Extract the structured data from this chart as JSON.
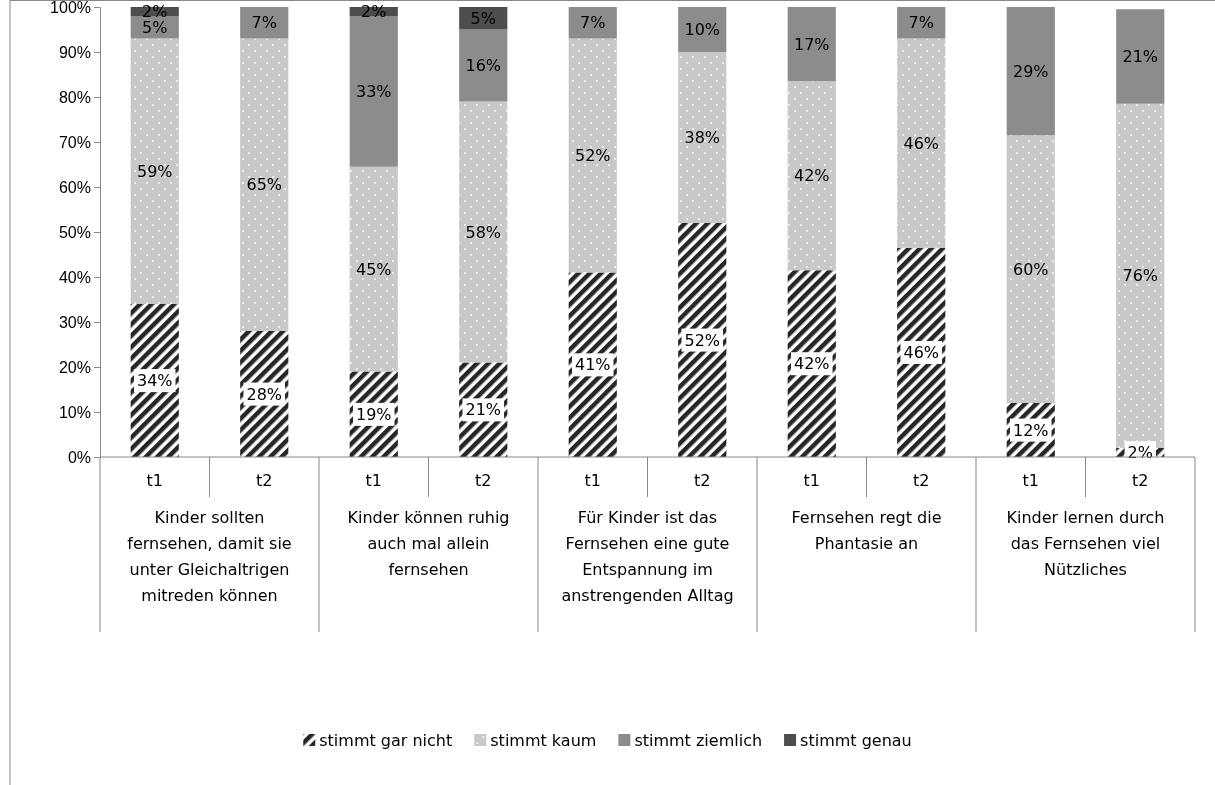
{
  "chart_data": {
    "type": "bar",
    "stacked": true,
    "categories": [
      "t1",
      "t2",
      "t1",
      "t2",
      "t1",
      "t2",
      "t1",
      "t2",
      "t1",
      "t2"
    ],
    "annotations": [
      "Kinder sollten fernsehen, damit sie unter Gleichaltrigen mitreden können",
      "Kinder können ruhig auch mal allein fernsehen",
      "Für Kinder ist das Fernsehen eine gute Entspannung im anstrengenden Alltag",
      "Fernsehen regt die Phantasie an",
      "Kinder lernen durch das Fernsehen viel Nützliches"
    ],
    "series": [
      {
        "name": "stimmt gar nicht",
        "color": "#262626",
        "values": [
          34,
          28,
          19,
          21,
          41,
          52,
          41.5,
          46.5,
          12,
          2
        ],
        "value_labels": [
          "34%",
          "28%",
          "19%",
          "21%",
          "41%",
          "52%",
          "42%",
          "46%",
          "12%",
          "2%"
        ]
      },
      {
        "name": "stimmt kaum",
        "color": "#c8c8c8",
        "values": [
          59,
          65,
          45.5,
          58,
          52,
          38,
          42,
          46.5,
          59.5,
          76.5
        ],
        "value_labels": [
          "59%",
          "65%",
          "45%",
          "58%",
          "52%",
          "38%",
          "42%",
          "46%",
          "60%",
          "76%"
        ]
      },
      {
        "name": "stimmt ziemlich",
        "color": "#8c8c8c",
        "values": [
          5,
          7,
          33.5,
          16,
          7,
          10,
          16.5,
          7,
          28.5,
          21
        ],
        "value_labels": [
          "5%",
          "7%",
          "33%",
          "16%",
          "7%",
          "10%",
          "17%",
          "7%",
          "29%",
          "21%"
        ]
      },
      {
        "name": "stimmt genau",
        "color": "#4d4d4d",
        "values": [
          2,
          null,
          2,
          5,
          null,
          null,
          null,
          null,
          null,
          null
        ],
        "value_labels": [
          "2%",
          null,
          "2%",
          "5%",
          null,
          null,
          null,
          null,
          null,
          null
        ]
      }
    ],
    "ylim": [
      0,
      100
    ],
    "yticks": [
      {
        "value": 0,
        "label": "0%"
      },
      {
        "value": 10,
        "label": "10%"
      },
      {
        "value": 20,
        "label": "20%"
      },
      {
        "value": 30,
        "label": "30%"
      },
      {
        "value": 40,
        "label": "40%"
      },
      {
        "value": 50,
        "label": "50%"
      },
      {
        "value": 60,
        "label": "60%"
      },
      {
        "value": 70,
        "label": "70%"
      },
      {
        "value": 80,
        "label": "80%"
      },
      {
        "value": 90,
        "label": "90%"
      },
      {
        "value": 100,
        "label": "100%"
      }
    ],
    "legend": "bottom",
    "grid": false
  }
}
